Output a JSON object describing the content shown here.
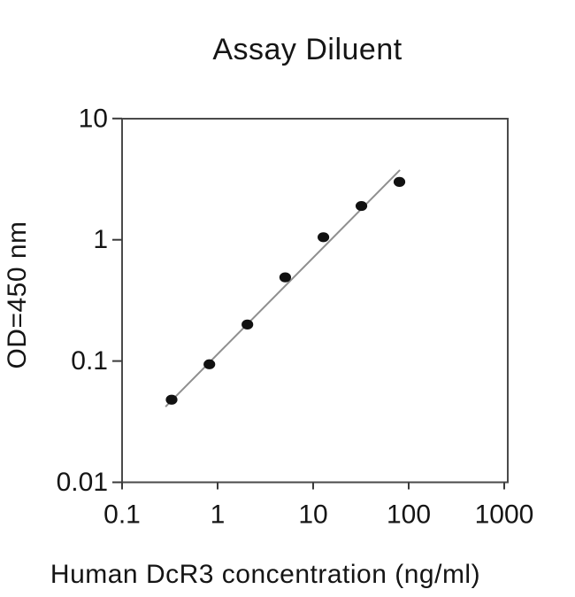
{
  "figure": {
    "background_color": "#ffffff",
    "text_color": "#151515",
    "frame_color": "#4a4a4a",
    "tick_color": "#3a3a3a"
  },
  "chart_data": {
    "type": "scatter",
    "title": "Assay Diluent",
    "xlabel": "Human DcR3 concentration (ng/ml)",
    "ylabel": "OD=450 nm",
    "x_scale": "log",
    "y_scale": "log",
    "xlim": [
      0.1,
      1000
    ],
    "ylim": [
      0.01,
      10
    ],
    "x_ticks": [
      0.1,
      1,
      10,
      100,
      1000
    ],
    "x_tick_labels": [
      "0.1",
      "1",
      "10",
      "100",
      "1000"
    ],
    "y_ticks": [
      0.01,
      0.1,
      1,
      10
    ],
    "y_tick_labels": [
      "0.01",
      "0.1",
      "1",
      "10"
    ],
    "grid": false,
    "legend": "none",
    "series": [
      {
        "name": "standard-curve-fit",
        "type": "line",
        "color": "#8f8f8f",
        "width": 2,
        "points": [
          {
            "x": 0.285,
            "y": 0.042
          },
          {
            "x": 81,
            "y": 3.76
          }
        ]
      },
      {
        "name": "standard-curve-points",
        "type": "scatter",
        "marker": "filled-ellipse",
        "color": "#111111",
        "marker_rx": 6.6,
        "marker_ry": 5.6,
        "points": [
          {
            "x": 0.33,
            "y": 0.048
          },
          {
            "x": 0.82,
            "y": 0.094
          },
          {
            "x": 2.05,
            "y": 0.2
          },
          {
            "x": 5.1,
            "y": 0.49
          },
          {
            "x": 12.8,
            "y": 1.05
          },
          {
            "x": 32,
            "y": 1.9
          },
          {
            "x": 80,
            "y": 3.0
          }
        ]
      }
    ]
  }
}
